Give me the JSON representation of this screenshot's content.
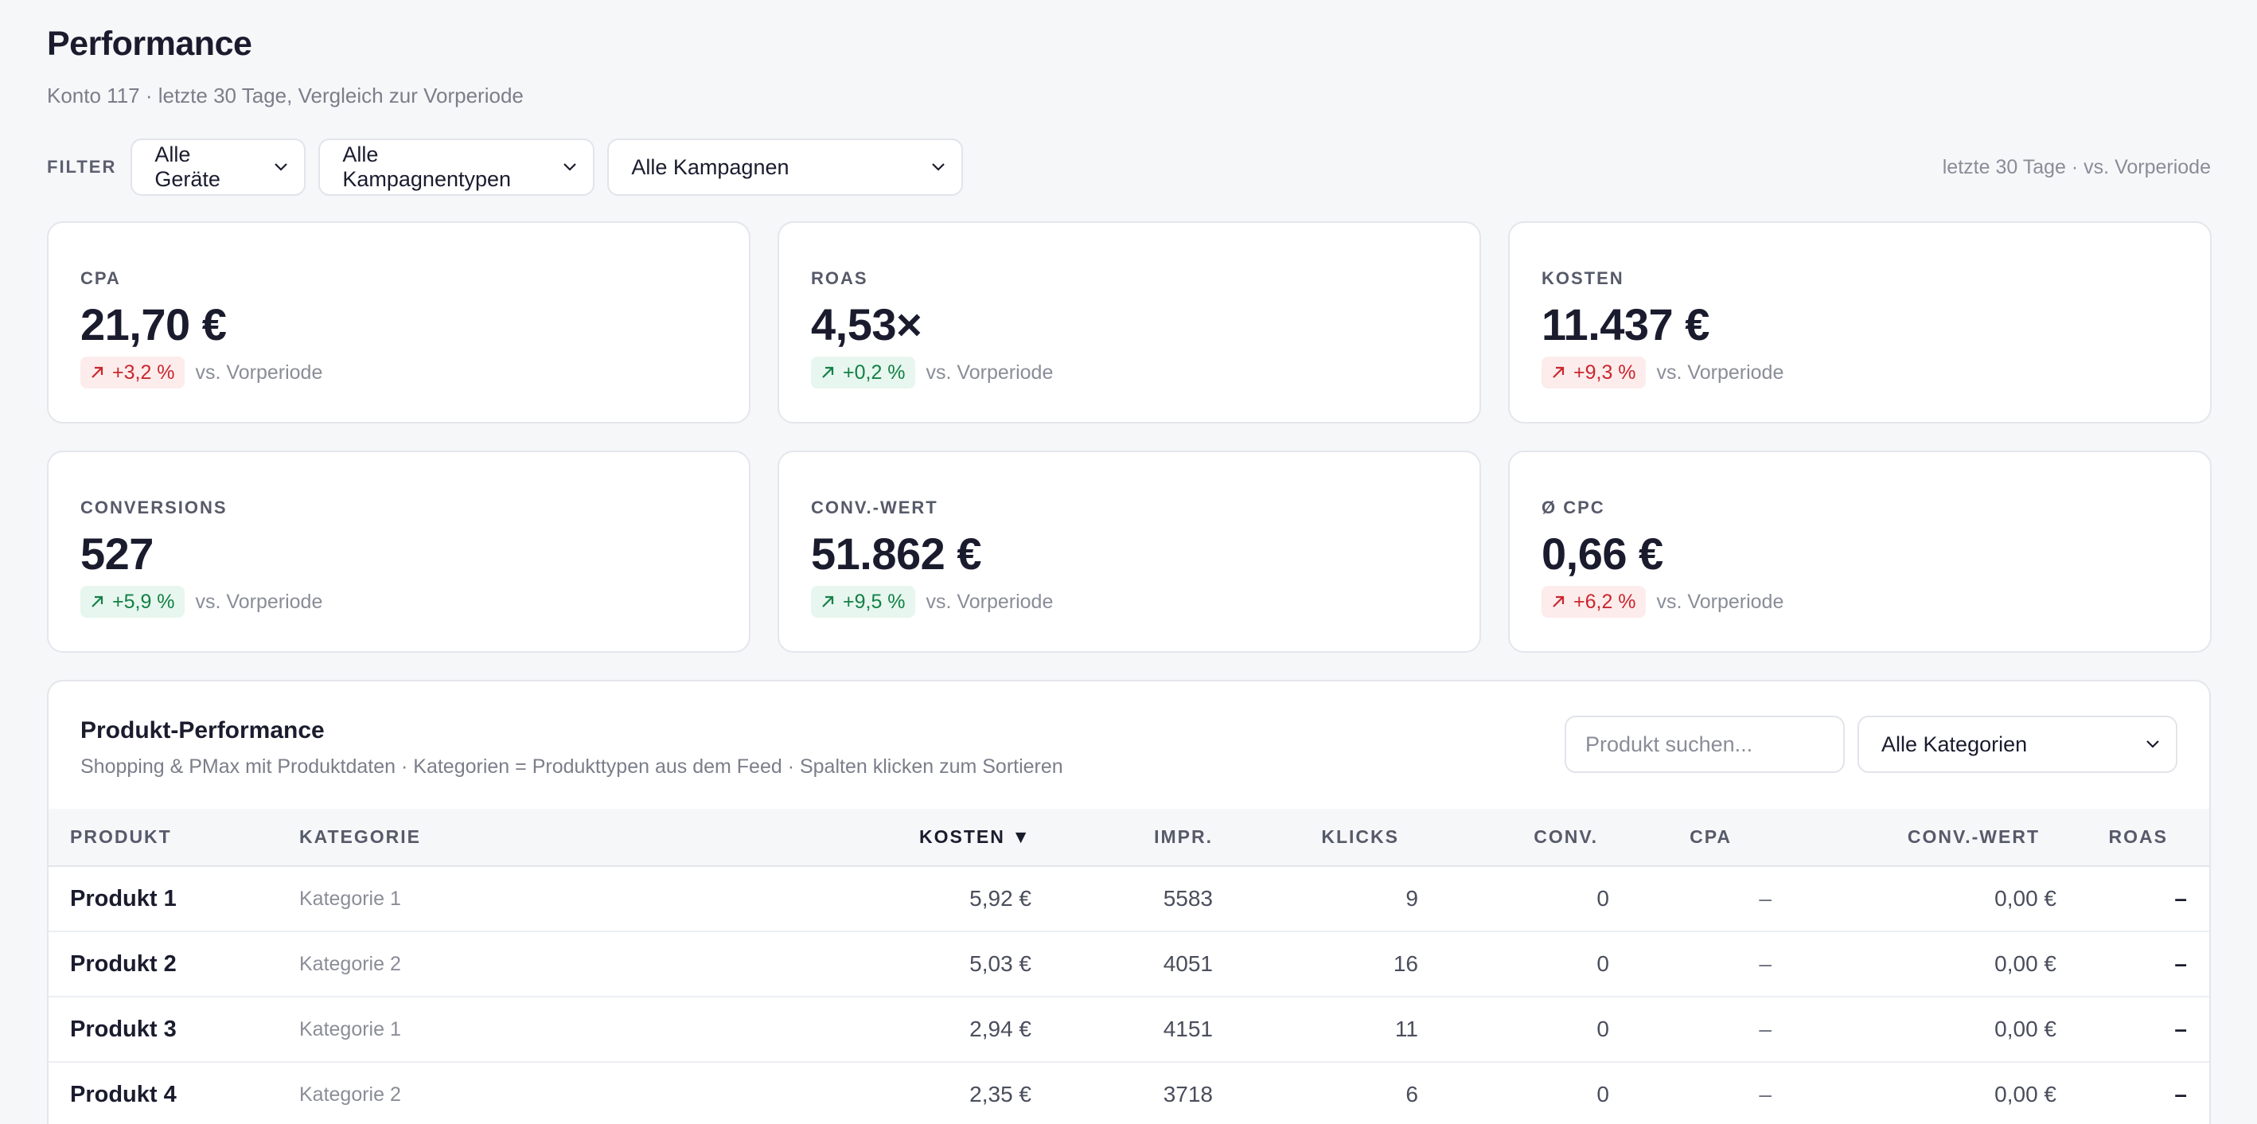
{
  "page": {
    "title": "Performance",
    "subtitle": "Konto 117 · letzte 30 Tage, Vergleich zur Vorperiode"
  },
  "filters": {
    "label": "FILTER",
    "devices": "Alle Geräte",
    "campaign_types": "Alle Kampagnentypen",
    "campaigns": "Alle Kampagnen",
    "period_note": "letzte 30 Tage · vs. Vorperiode"
  },
  "kpis": [
    {
      "label": "CPA",
      "value": "21,70 €",
      "delta": "+3,2 %",
      "trend": "negative",
      "note": "vs. Vorperiode"
    },
    {
      "label": "ROAS",
      "value": "4,53×",
      "delta": "+0,2 %",
      "trend": "positive",
      "note": "vs. Vorperiode"
    },
    {
      "label": "KOSTEN",
      "value": "11.437 €",
      "delta": "+9,3 %",
      "trend": "negative",
      "note": "vs. Vorperiode"
    },
    {
      "label": "CONVERSIONS",
      "value": "527",
      "delta": "+5,9 %",
      "trend": "positive",
      "note": "vs. Vorperiode"
    },
    {
      "label": "CONV.-WERT",
      "value": "51.862 €",
      "delta": "+9,5 %",
      "trend": "positive",
      "note": "vs. Vorperiode"
    },
    {
      "label": "Ø CPC",
      "value": "0,66 €",
      "delta": "+6,2 %",
      "trend": "negative",
      "note": "vs. Vorperiode"
    }
  ],
  "colors": {
    "negative_bg": "#fdecec",
    "negative_fg": "#c9272e",
    "positive_bg": "#e7f6ee",
    "positive_fg": "#138046"
  },
  "product_table": {
    "title": "Produkt-Performance",
    "subtitle": "Shopping & PMax mit Produktdaten · Kategorien = Produkttypen aus dem Feed · Spalten klicken zum Sortieren",
    "search_placeholder": "Produkt suchen...",
    "category_filter": "Alle Kategorien",
    "columns": [
      "PRODUKT",
      "KATEGORIE",
      "KOSTEN ▼",
      "IMPR.",
      "KLICKS",
      "CONV.",
      "CPA",
      "CONV.-WERT",
      "ROAS"
    ],
    "sorted_column": "KOSTEN",
    "rows": [
      {
        "product": "Produkt 1",
        "category": "Kategorie 1",
        "cost": "5,92 €",
        "impr": "5583",
        "clicks": "9",
        "conv": "0",
        "cpa": "–",
        "conv_value": "0,00 €",
        "roas": "–"
      },
      {
        "product": "Produkt 2",
        "category": "Kategorie 2",
        "cost": "5,03 €",
        "impr": "4051",
        "clicks": "16",
        "conv": "0",
        "cpa": "–",
        "conv_value": "0,00 €",
        "roas": "–"
      },
      {
        "product": "Produkt 3",
        "category": "Kategorie 1",
        "cost": "2,94 €",
        "impr": "4151",
        "clicks": "11",
        "conv": "0",
        "cpa": "–",
        "conv_value": "0,00 €",
        "roas": "–"
      },
      {
        "product": "Produkt 4",
        "category": "Kategorie 2",
        "cost": "2,35 €",
        "impr": "3718",
        "clicks": "6",
        "conv": "0",
        "cpa": "–",
        "conv_value": "0,00 €",
        "roas": "–"
      }
    ]
  }
}
